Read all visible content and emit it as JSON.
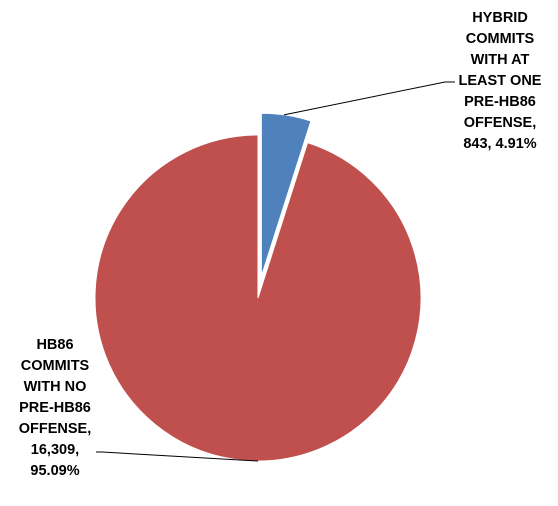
{
  "chart_data": {
    "type": "pie",
    "title": "",
    "legend": "none",
    "slices": [
      {
        "label": "HYBRID COMMITS WITH AT LEAST ONE PRE-HB86 OFFENSE",
        "value": 843,
        "percent": 4.91,
        "color": "#4F81BD",
        "exploded": true,
        "label_lines": [
          "HYBRID",
          "COMMITS",
          "WITH AT",
          "LEAST ONE",
          "PRE-HB86",
          "OFFENSE,",
          "843, 4.91%"
        ]
      },
      {
        "label": "HB86 COMMITS WITH NO PRE-HB86 OFFENSE",
        "value": 16309,
        "percent": 95.09,
        "color": "#C0504D",
        "exploded": false,
        "label_lines": [
          "HB86",
          "COMMITS",
          "WITH NO",
          "PRE-HB86",
          "OFFENSE,",
          "16,309,",
          "95.09%"
        ]
      }
    ]
  }
}
